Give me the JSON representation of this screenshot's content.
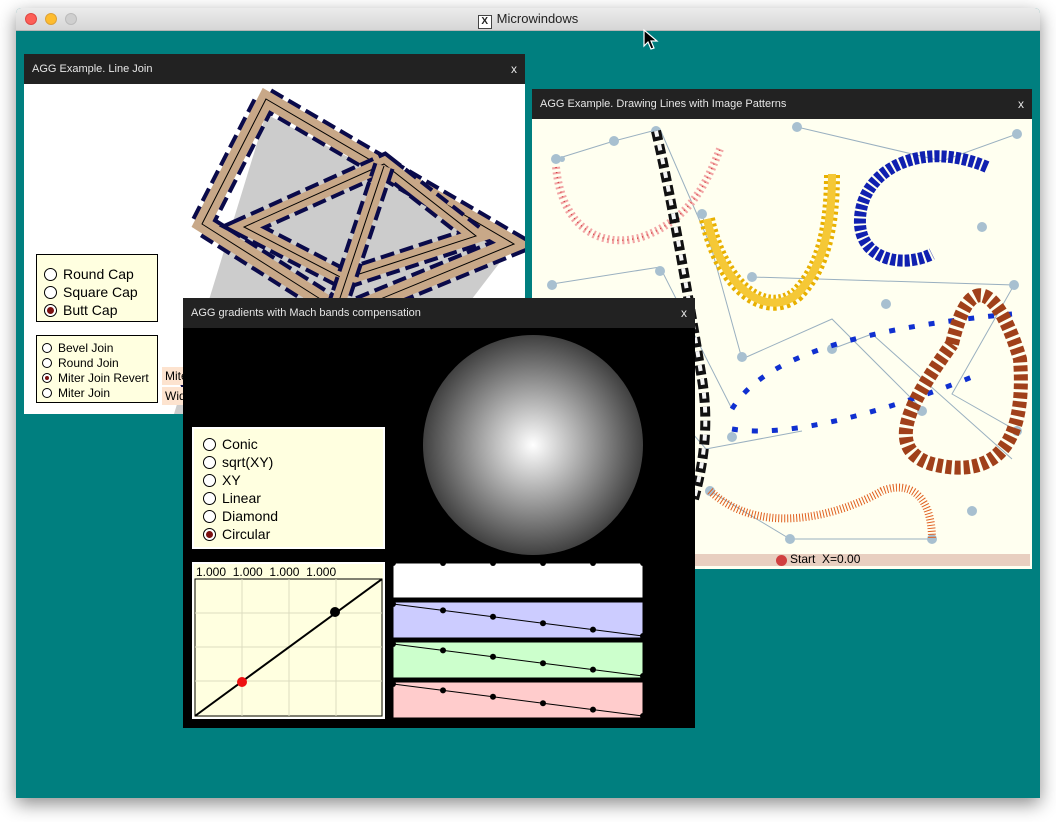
{
  "app": {
    "title": "Microwindows"
  },
  "line_join_window": {
    "title": "AGG Example. Line Join",
    "close": "x",
    "caps": [
      {
        "label": "Round Cap",
        "selected": false
      },
      {
        "label": "Square Cap",
        "selected": false
      },
      {
        "label": "Butt Cap",
        "selected": true
      }
    ],
    "joins": [
      {
        "label": "Bevel Join",
        "selected": false
      },
      {
        "label": "Round Join",
        "selected": false
      },
      {
        "label": "Miter Join Revert",
        "selected": true
      },
      {
        "label": "Miter Join",
        "selected": false
      }
    ],
    "slider_miter_label": "Mite",
    "slider_width_label": "Wid"
  },
  "image_patterns_window": {
    "title": "AGG Example. Drawing Lines with Image Patterns",
    "close": "x",
    "start_label": "Start  X=0.00"
  },
  "gradients_window": {
    "title": "AGG gradients with Mach bands compensation",
    "close": "x",
    "gradient_types": [
      {
        "label": "Conic",
        "selected": false
      },
      {
        "label": "sqrt(XY)",
        "selected": false
      },
      {
        "label": "XY",
        "selected": false
      },
      {
        "label": "Linear",
        "selected": false
      },
      {
        "label": "Diamond",
        "selected": false
      },
      {
        "label": "Circular",
        "selected": true
      }
    ],
    "spline_values": "1.000  1.000  1.000  1.000",
    "color_profiles": [
      {
        "name": "white",
        "color": "#ffffff"
      },
      {
        "name": "blue",
        "color": "#ccccff"
      },
      {
        "name": "green",
        "color": "#ccffcc"
      },
      {
        "name": "red",
        "color": "#ffcccc"
      }
    ]
  },
  "colors": {
    "desktop": "#007f7f",
    "titlebar": "#222222",
    "panel": "#ffffe0",
    "selected_radio": "#7b1010"
  }
}
